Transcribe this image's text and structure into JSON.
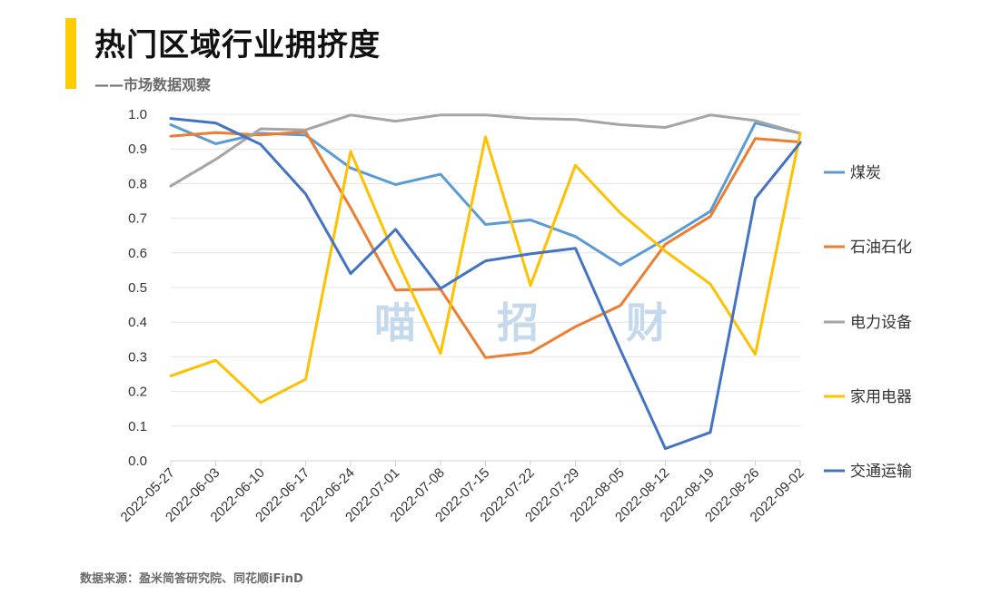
{
  "header": {
    "title": "热门区域行业拥挤度",
    "subtitle": "——市场数据观察"
  },
  "watermark": [
    "喵",
    "招",
    "财"
  ],
  "source": "数据来源：盈米简答研究院、同花顺iFinD",
  "chart_data": {
    "type": "line",
    "categories": [
      "2022-05-27",
      "2022-06-03",
      "2022-06-10",
      "2022-06-17",
      "2022-06-24",
      "2022-07-01",
      "2022-07-08",
      "2022-07-15",
      "2022-07-22",
      "2022-07-29",
      "2022-08-05",
      "2022-08-12",
      "2022-08-19",
      "2022-08-26",
      "2022-09-02"
    ],
    "ylim": [
      0,
      1.0
    ],
    "yticks": [
      "0.0",
      "0.1",
      "0.2",
      "0.3",
      "0.4",
      "0.5",
      "0.6",
      "0.7",
      "0.8",
      "0.9",
      "1.0"
    ],
    "grid": true,
    "legend_position": "right",
    "series": [
      {
        "name": "煤炭",
        "color": "#5B9BD5",
        "values": [
          0.97,
          0.915,
          0.945,
          0.94,
          0.845,
          0.797,
          0.827,
          0.682,
          0.695,
          0.647,
          0.565,
          0.64,
          0.72,
          0.975,
          0.945
        ]
      },
      {
        "name": "石油石化",
        "color": "#ED7D31",
        "values": [
          0.937,
          0.947,
          0.94,
          0.95,
          0.73,
          0.493,
          0.495,
          0.298,
          0.312,
          0.387,
          0.448,
          0.625,
          0.705,
          0.93,
          0.92
        ]
      },
      {
        "name": "电力设备",
        "color": "#A5A5A5",
        "values": [
          0.793,
          0.87,
          0.958,
          0.955,
          0.998,
          0.98,
          0.998,
          0.998,
          0.988,
          0.985,
          0.97,
          0.962,
          0.998,
          0.982,
          0.945
        ]
      },
      {
        "name": "家用电器",
        "color": "#FFC000",
        "values": [
          0.245,
          0.29,
          0.168,
          0.235,
          0.893,
          0.587,
          0.31,
          0.935,
          0.506,
          0.853,
          0.715,
          0.605,
          0.51,
          0.307,
          0.945
        ]
      },
      {
        "name": "交通运输",
        "color": "#4472C4",
        "values": [
          0.988,
          0.975,
          0.913,
          0.77,
          0.54,
          0.668,
          0.497,
          0.577,
          0.597,
          0.613,
          0.32,
          0.035,
          0.082,
          0.757,
          0.918
        ]
      }
    ]
  }
}
